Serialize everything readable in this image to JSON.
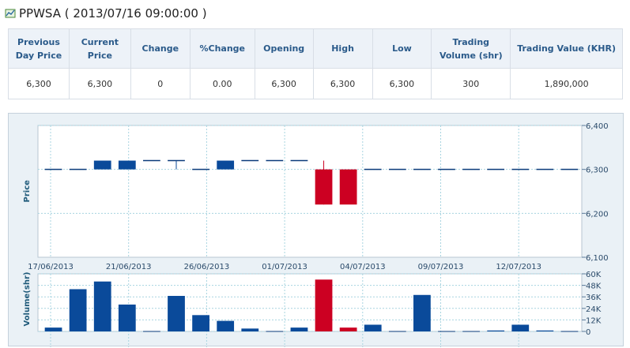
{
  "header": {
    "title": "PPWSA ( 2013/07/16 09:00:00 )"
  },
  "quote_table": {
    "columns": [
      "Previous Day Price",
      "Current Price",
      "Change",
      "%Change",
      "Opening",
      "High",
      "Low",
      "Trading Volume (shr)",
      "Trading Value (KHR)"
    ],
    "values": [
      "6,300",
      "6,300",
      "0",
      "0.00",
      "6,300",
      "6,300",
      "6,300",
      "300",
      "1,890,000"
    ]
  },
  "chart_data": [
    {
      "type": "candlestick",
      "ylabel": "Price",
      "ylim": [
        6100,
        6400
      ],
      "yticks": [
        "6,400",
        "6,300",
        "6,200",
        "6,100"
      ],
      "xtick_labels": [
        "17/06/2013",
        "21/06/2013",
        "26/06/2013",
        "01/07/2013",
        "04/07/2013",
        "09/07/2013",
        "12/07/2013"
      ],
      "colors": {
        "up": "#0a4a9a",
        "down": "#cc0022"
      },
      "candles": [
        {
          "i": 0,
          "open": 6300,
          "close": 6300,
          "high": 6300,
          "low": 6300
        },
        {
          "i": 1,
          "open": 6300,
          "close": 6300,
          "high": 6300,
          "low": 6300
        },
        {
          "i": 2,
          "open": 6300,
          "close": 6320,
          "high": 6320,
          "low": 6300
        },
        {
          "i": 3,
          "open": 6300,
          "close": 6320,
          "high": 6320,
          "low": 6300
        },
        {
          "i": 4,
          "open": 6320,
          "close": 6320,
          "high": 6320,
          "low": 6320
        },
        {
          "i": 5,
          "open": 6320,
          "close": 6320,
          "high": 6320,
          "low": 6300
        },
        {
          "i": 6,
          "open": 6300,
          "close": 6300,
          "high": 6300,
          "low": 6300
        },
        {
          "i": 7,
          "open": 6300,
          "close": 6320,
          "high": 6320,
          "low": 6300
        },
        {
          "i": 8,
          "open": 6320,
          "close": 6320,
          "high": 6320,
          "low": 6320
        },
        {
          "i": 9,
          "open": 6320,
          "close": 6320,
          "high": 6320,
          "low": 6320
        },
        {
          "i": 10,
          "open": 6320,
          "close": 6320,
          "high": 6320,
          "low": 6320
        },
        {
          "i": 11,
          "open": 6300,
          "close": 6220,
          "high": 6320,
          "low": 6220
        },
        {
          "i": 12,
          "open": 6300,
          "close": 6220,
          "high": 6300,
          "low": 6220
        },
        {
          "i": 13,
          "open": 6300,
          "close": 6300,
          "high": 6300,
          "low": 6300
        },
        {
          "i": 14,
          "open": 6300,
          "close": 6300,
          "high": 6300,
          "low": 6300
        },
        {
          "i": 15,
          "open": 6300,
          "close": 6300,
          "high": 6300,
          "low": 6300
        },
        {
          "i": 16,
          "open": 6300,
          "close": 6300,
          "high": 6300,
          "low": 6300
        },
        {
          "i": 17,
          "open": 6300,
          "close": 6300,
          "high": 6300,
          "low": 6300
        },
        {
          "i": 18,
          "open": 6300,
          "close": 6300,
          "high": 6300,
          "low": 6300
        },
        {
          "i": 19,
          "open": 6300,
          "close": 6300,
          "high": 6300,
          "low": 6300
        },
        {
          "i": 20,
          "open": 6300,
          "close": 6300,
          "high": 6300,
          "low": 6300
        },
        {
          "i": 21,
          "open": 6300,
          "close": 6300,
          "high": 6300,
          "low": 6300
        }
      ]
    },
    {
      "type": "bar",
      "ylabel": "Volume(shr)",
      "ylim": [
        0,
        60000
      ],
      "yticks": [
        "60K",
        "48K",
        "36K",
        "24K",
        "12K",
        "0"
      ],
      "values": [
        4000,
        44000,
        52000,
        28000,
        0,
        37000,
        17000,
        11000,
        3000,
        0,
        4000,
        54000,
        4000,
        7000,
        0,
        38000,
        0,
        0,
        1000,
        7000,
        1000,
        0
      ],
      "up_flags": [
        1,
        1,
        1,
        1,
        1,
        1,
        1,
        1,
        1,
        1,
        1,
        0,
        0,
        1,
        1,
        1,
        1,
        1,
        1,
        1,
        1,
        1
      ]
    }
  ]
}
